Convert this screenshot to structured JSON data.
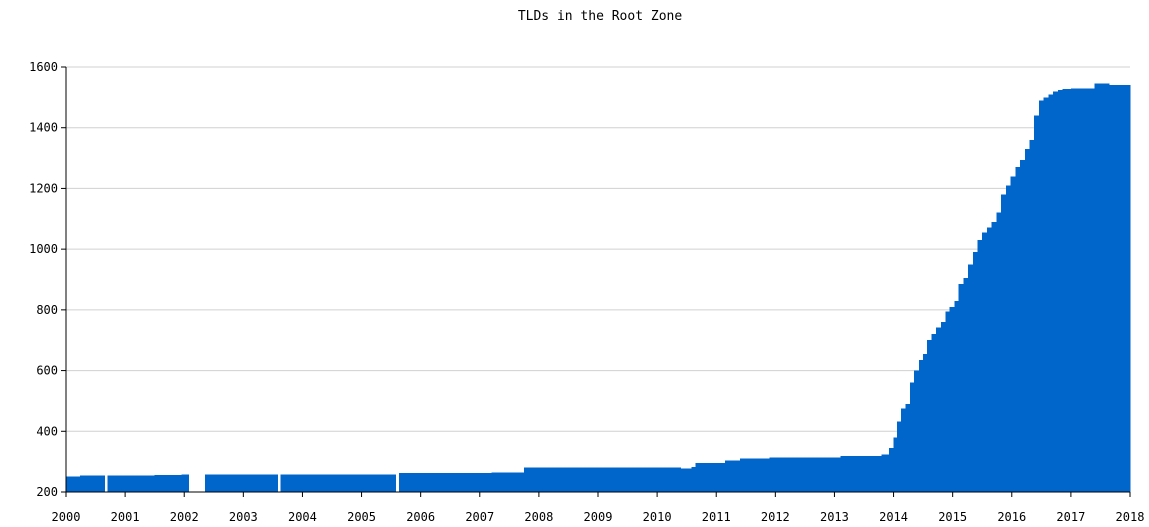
{
  "chart_data": {
    "type": "bar",
    "title": "TLDs in the Root Zone",
    "xlabel": "",
    "ylabel": "",
    "xlim": [
      2000,
      2018
    ],
    "ylim": [
      200,
      1600
    ],
    "y_ticks": [
      200,
      400,
      600,
      800,
      1000,
      1200,
      1400,
      1600
    ],
    "x_ticks": [
      "2000",
      "2001",
      "2002",
      "2003",
      "2004",
      "2005",
      "2006",
      "2007",
      "2008",
      "2009",
      "2010",
      "2011",
      "2012",
      "2013",
      "2014",
      "2015",
      "2016",
      "2017",
      "2018"
    ],
    "grid": true,
    "color": "#0066cc",
    "series": [
      {
        "points": [
          [
            2000.0,
            251
          ],
          [
            2000.24,
            255
          ],
          [
            2000.7,
            255
          ],
          [
            2001.5,
            256
          ],
          [
            2001.95,
            258
          ],
          [
            2002.35,
            258
          ],
          [
            2003.6,
            258
          ],
          [
            2004.0,
            258
          ],
          [
            2005.6,
            262
          ],
          [
            2006.5,
            263
          ],
          [
            2007.2,
            265
          ],
          [
            2007.75,
            280
          ],
          [
            2008.5,
            280
          ],
          [
            2010.4,
            278
          ],
          [
            2010.58,
            282
          ],
          [
            2010.65,
            296
          ],
          [
            2011.15,
            303
          ],
          [
            2011.4,
            310
          ],
          [
            2011.9,
            313
          ],
          [
            2012.5,
            314
          ],
          [
            2013.1,
            318
          ],
          [
            2013.8,
            323
          ],
          [
            2013.92,
            345
          ],
          [
            2014.0,
            380
          ],
          [
            2014.06,
            432
          ],
          [
            2014.13,
            475
          ],
          [
            2014.2,
            490
          ],
          [
            2014.28,
            560
          ],
          [
            2014.35,
            600
          ],
          [
            2014.43,
            635
          ],
          [
            2014.5,
            655
          ],
          [
            2014.57,
            700
          ],
          [
            2014.64,
            720
          ],
          [
            2014.72,
            742
          ],
          [
            2014.8,
            760
          ],
          [
            2014.88,
            795
          ],
          [
            2014.95,
            810
          ],
          [
            2015.03,
            830
          ],
          [
            2015.1,
            885
          ],
          [
            2015.18,
            905
          ],
          [
            2015.26,
            950
          ],
          [
            2015.34,
            990
          ],
          [
            2015.42,
            1030
          ],
          [
            2015.5,
            1055
          ],
          [
            2015.58,
            1072
          ],
          [
            2015.66,
            1090
          ],
          [
            2015.74,
            1120
          ],
          [
            2015.82,
            1180
          ],
          [
            2015.9,
            1210
          ],
          [
            2015.98,
            1240
          ],
          [
            2016.06,
            1270
          ],
          [
            2016.14,
            1293
          ],
          [
            2016.22,
            1330
          ],
          [
            2016.3,
            1360
          ],
          [
            2016.38,
            1440
          ],
          [
            2016.46,
            1490
          ],
          [
            2016.54,
            1500
          ],
          [
            2016.62,
            1510
          ],
          [
            2016.7,
            1520
          ],
          [
            2016.78,
            1525
          ],
          [
            2016.86,
            1528
          ],
          [
            2017.0,
            1530
          ],
          [
            2017.4,
            1545
          ],
          [
            2017.65,
            1540
          ],
          [
            2018.0,
            1540
          ]
        ]
      }
    ],
    "gaps": [
      [
        2000.65,
        2000.7
      ],
      [
        2002.07,
        2002.35
      ],
      [
        2003.58,
        2003.63
      ],
      [
        2005.58,
        2005.63
      ]
    ]
  }
}
